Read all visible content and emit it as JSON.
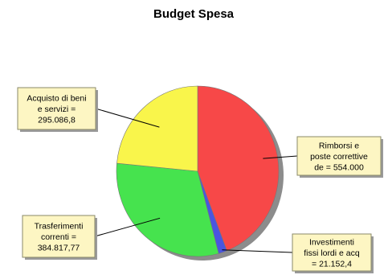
{
  "chart_data": {
    "type": "pie",
    "title": "Budget Spesa",
    "slices": [
      {
        "label": "Rimborsi e poste correttive",
        "value": 554000,
        "display_lines": [
          "Rimborsi e",
          "poste correttive",
          "de = 554.000"
        ],
        "color": "#f74848"
      },
      {
        "label": "Investimenti fissi lordi e acq",
        "value": 21152.4,
        "display_lines": [
          "Investimenti",
          "fissi lordi e acq",
          "= 21.152,4"
        ],
        "color": "#4a55e0"
      },
      {
        "label": "Trasferimenti correnti",
        "value": 384817.77,
        "display_lines": [
          "Trasferimenti",
          "correnti =",
          "384.817,77"
        ],
        "color": "#46e34e"
      },
      {
        "label": "Acquisto di beni e servizi",
        "value": 295086.8,
        "display_lines": [
          "Acquisto di beni",
          "e servizi =",
          "295.086,8"
        ],
        "color": "#f9f54b"
      }
    ],
    "start_angle_deg": 0,
    "direction": "clockwise",
    "colors": {
      "pie_shadow": "#8c8c8c",
      "callout_fill": "#fdf6c3",
      "callout_border": "#8a8a6a"
    }
  }
}
